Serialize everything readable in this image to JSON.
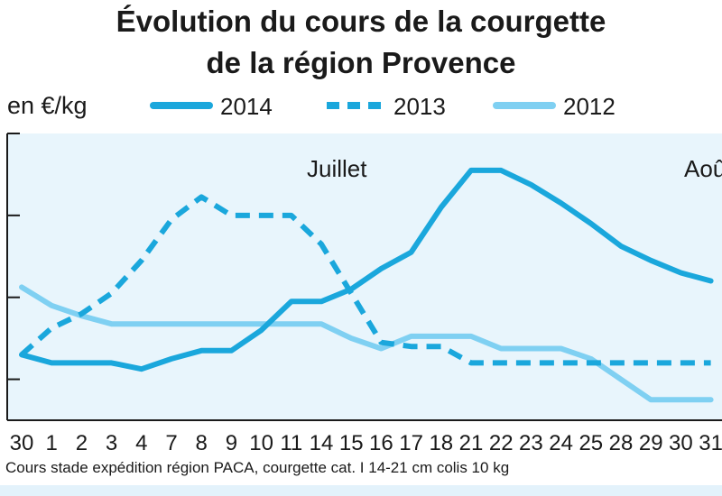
{
  "chart_data": {
    "type": "line",
    "title_line1": "Évolution du cours de la courgette",
    "title_line2": "de la région Provence",
    "ylabel": "en €/kg",
    "categories": [
      "30",
      "1",
      "2",
      "3",
      "4",
      "7",
      "8",
      "9",
      "10",
      "11",
      "14",
      "15",
      "16",
      "17",
      "18",
      "21",
      "22",
      "23",
      "24",
      "25",
      "28",
      "29",
      "30",
      "31"
    ],
    "month_labels": [
      "Juillet",
      "Aoû"
    ],
    "series": [
      {
        "name": "2014",
        "style": "solid",
        "color": "#1aa7dc",
        "values": [
          0.92,
          0.88,
          0.88,
          0.88,
          0.85,
          0.9,
          0.94,
          0.94,
          1.04,
          1.18,
          1.18,
          1.24,
          1.34,
          1.42,
          1.64,
          1.82,
          1.82,
          1.75,
          1.66,
          1.56,
          1.45,
          1.38,
          1.32,
          1.28
        ]
      },
      {
        "name": "2013",
        "style": "dashed",
        "color": "#1aa7dc",
        "values": [
          0.92,
          1.05,
          1.12,
          1.22,
          1.38,
          1.58,
          1.69,
          1.6,
          1.6,
          1.6,
          1.46,
          1.22,
          0.98,
          0.96,
          0.96,
          0.88,
          0.88,
          0.88,
          0.88,
          0.88,
          0.88,
          0.88,
          0.88,
          0.88
        ]
      },
      {
        "name": "2012",
        "style": "solid",
        "color": "#7fd0f2",
        "values": [
          1.25,
          1.16,
          1.11,
          1.07,
          1.07,
          1.07,
          1.07,
          1.07,
          1.07,
          1.07,
          1.07,
          1.0,
          0.95,
          1.01,
          1.01,
          1.01,
          0.95,
          0.95,
          0.95,
          0.9,
          0.8,
          0.7,
          0.7,
          0.7
        ]
      }
    ],
    "source": "Cours stade expédition région PACA, courgette cat. I 14-21 cm colis 10 kg",
    "background_color": "#e8f5fc",
    "grid": false
  }
}
